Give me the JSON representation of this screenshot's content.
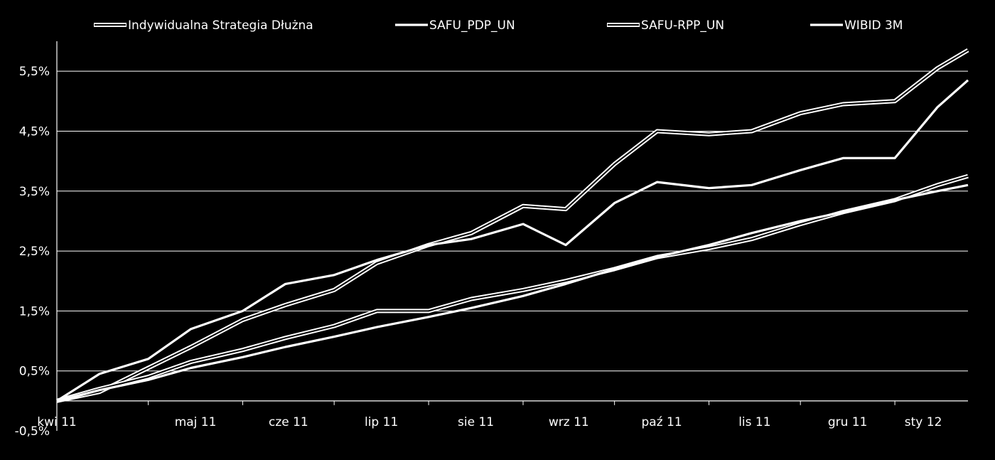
{
  "chart_data": {
    "type": "line",
    "title": "",
    "xlabel": "",
    "ylabel": "",
    "ylim": [
      -0.5,
      6.0
    ],
    "x_tick_labels": [
      "kwi 11",
      "maj 11",
      "cze 11",
      "lip 11",
      "sie 11",
      "wrz 11",
      "paź 11",
      "lis 11",
      "gru 11",
      "sty 12"
    ],
    "y_tick_labels": [
      "-0,5%",
      "0,5%",
      "1,5%",
      "2,5%",
      "3,5%",
      "4,5%",
      "5,5%"
    ],
    "y_ticks": [
      -0.5,
      0.5,
      1.5,
      2.5,
      3.5,
      4.5,
      5.5
    ],
    "grid": true,
    "legend_position": "top",
    "x": [
      "2011-04-01",
      "2011-04-15",
      "2011-05-01",
      "2011-05-15",
      "2011-06-01",
      "2011-06-15",
      "2011-07-01",
      "2011-07-15",
      "2011-08-01",
      "2011-08-15",
      "2011-09-01",
      "2011-09-15",
      "2011-10-01",
      "2011-10-15",
      "2011-11-01",
      "2011-11-15",
      "2011-12-01",
      "2011-12-15",
      "2012-01-01",
      "2012-01-15",
      "2012-01-25"
    ],
    "series": [
      {
        "name": "Indywidualna Strategia Dłużna",
        "style": "double",
        "values": [
          0.0,
          0.15,
          0.55,
          0.9,
          1.35,
          1.6,
          1.85,
          2.3,
          2.6,
          2.8,
          3.25,
          3.2,
          3.95,
          4.5,
          4.45,
          4.5,
          4.8,
          4.95,
          5.0,
          5.55,
          5.85
        ]
      },
      {
        "name": "SAFU_PDP_UN",
        "style": "single",
        "values": [
          0.0,
          0.45,
          0.7,
          1.2,
          1.5,
          1.95,
          2.1,
          2.35,
          2.6,
          2.7,
          2.95,
          2.6,
          3.3,
          3.65,
          3.55,
          3.6,
          3.85,
          4.05,
          4.05,
          4.9,
          5.35
        ]
      },
      {
        "name": "SAFU-RPP_UN",
        "style": "double",
        "values": [
          0.0,
          0.2,
          0.4,
          0.65,
          0.85,
          1.05,
          1.25,
          1.5,
          1.5,
          1.7,
          1.85,
          2.0,
          2.2,
          2.4,
          2.55,
          2.7,
          2.95,
          3.15,
          3.35,
          3.6,
          3.75
        ]
      },
      {
        "name": "WIBID 3M",
        "style": "single",
        "values": [
          0.0,
          0.18,
          0.35,
          0.55,
          0.73,
          0.9,
          1.07,
          1.23,
          1.4,
          1.55,
          1.75,
          1.95,
          2.2,
          2.4,
          2.6,
          2.8,
          3.0,
          3.15,
          3.35,
          3.5,
          3.6
        ]
      }
    ]
  },
  "colors": {
    "background": "#000000",
    "line": "#ffffff",
    "grid": "#ffffff"
  }
}
